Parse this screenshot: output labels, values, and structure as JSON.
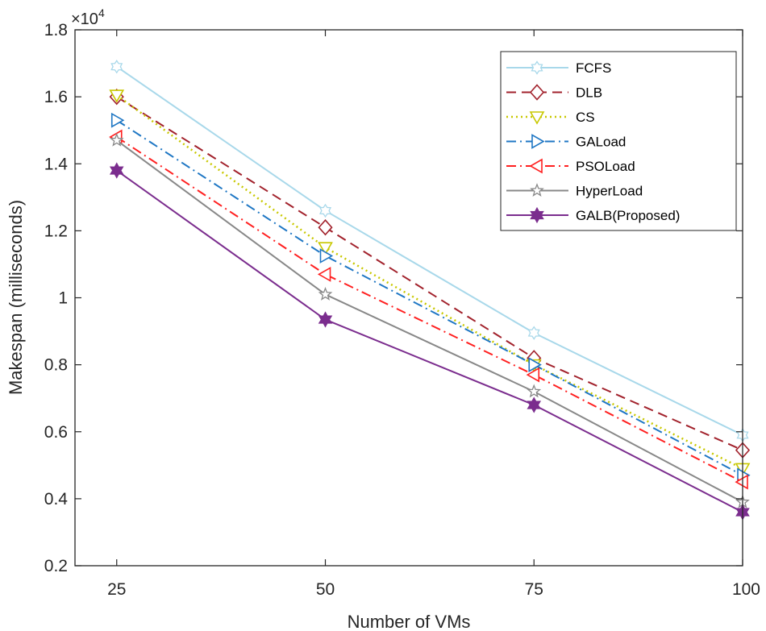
{
  "chart_data": {
    "type": "line",
    "title": "",
    "xlabel": "Number of VMs",
    "ylabel": "Makespan (milliseconds)",
    "y_exponent_label": "×10",
    "y_exponent_power": "4",
    "x": [
      25,
      50,
      75,
      100
    ],
    "x_tick_labels": [
      "25",
      "50",
      "75",
      "100"
    ],
    "xlim": [
      20,
      100
    ],
    "ylim": [
      0.2,
      1.8
    ],
    "y_ticks": [
      0.2,
      0.4,
      0.6,
      0.8,
      1.0,
      1.2,
      1.4,
      1.6,
      1.8
    ],
    "y_tick_labels": [
      "0.2",
      "0.4",
      "0.6",
      "0.8",
      "1",
      "1.2",
      "1.4",
      "1.6",
      "1.8"
    ],
    "grid": false,
    "legend_position": "top-right",
    "series": [
      {
        "name": "FCFS",
        "values": [
          1.69,
          1.26,
          0.895,
          0.59
        ],
        "color": "#a8d8ea",
        "dash": "",
        "marker": "hexagram",
        "width": 2
      },
      {
        "name": "DLB",
        "values": [
          1.6,
          1.21,
          0.82,
          0.545
        ],
        "color": "#a2222c",
        "dash": "12,7",
        "marker": "diamond",
        "width": 2
      },
      {
        "name": "CS",
        "values": [
          1.605,
          1.15,
          0.8,
          0.49
        ],
        "color": "#c8c800",
        "dash": "2,4",
        "marker": "triangle-down",
        "width": 2.5
      },
      {
        "name": "GALoad",
        "values": [
          1.53,
          1.125,
          0.8,
          0.47
        ],
        "color": "#1f77c4",
        "dash": "12,5,2,5",
        "marker": "triangle-right",
        "width": 2
      },
      {
        "name": "PSOLoad",
        "values": [
          1.48,
          1.07,
          0.77,
          0.45
        ],
        "color": "#ff2020",
        "dash": "12,5,2,5",
        "marker": "triangle-left",
        "width": 2
      },
      {
        "name": "HyperLoad",
        "values": [
          1.47,
          1.01,
          0.72,
          0.39
        ],
        "color": "#888888",
        "dash": "",
        "marker": "pentagram",
        "width": 2
      },
      {
        "name": "GALB(Proposed)",
        "values": [
          1.38,
          0.935,
          0.68,
          0.36
        ],
        "color": "#7b2d8e",
        "dash": "",
        "marker": "hexagram-filled",
        "width": 2
      }
    ]
  }
}
